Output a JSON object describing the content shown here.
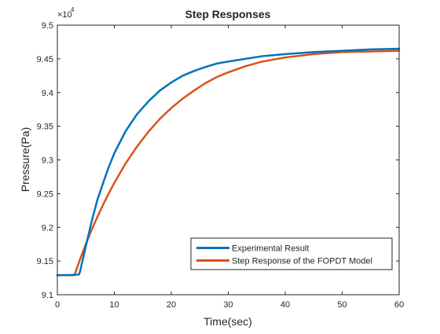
{
  "chart_data": {
    "type": "line",
    "title": "Step Responses",
    "xlabel": "Time(sec)",
    "ylabel": "Pressure(Pa)",
    "y_exponent_label": "×10",
    "y_exponent_power": "4",
    "xlim": [
      0,
      60
    ],
    "ylim": [
      9.1,
      9.5
    ],
    "x_ticks": [
      0,
      10,
      20,
      30,
      40,
      50,
      60
    ],
    "x_tick_labels": [
      "0",
      "10",
      "20",
      "30",
      "40",
      "50",
      "60"
    ],
    "y_ticks": [
      9.1,
      9.15,
      9.2,
      9.25,
      9.3,
      9.35,
      9.4,
      9.45,
      9.5
    ],
    "y_tick_labels": [
      "9.1",
      "9.15",
      "9.2",
      "9.25",
      "9.3",
      "9.35",
      "9.4",
      "9.45",
      "9.5"
    ],
    "grid": false,
    "legend_position": "bottom-right",
    "series": [
      {
        "name": "Experimental Result",
        "color": "#0072BD",
        "x": [
          0,
          2,
          3.8,
          4.0,
          5,
          6,
          7,
          8,
          9,
          10,
          12,
          14,
          16,
          18,
          20,
          22,
          24,
          26,
          28,
          30,
          33,
          36,
          40,
          45,
          50,
          55,
          60
        ],
        "y": [
          9.129,
          9.129,
          9.13,
          9.135,
          9.172,
          9.208,
          9.24,
          9.265,
          9.289,
          9.31,
          9.343,
          9.368,
          9.387,
          9.403,
          9.415,
          9.425,
          9.432,
          9.438,
          9.443,
          9.446,
          9.45,
          9.454,
          9.457,
          9.46,
          9.462,
          9.464,
          9.465
        ]
      },
      {
        "name": "Step Response of the FOPDT Model",
        "color": "#D95319",
        "x": [
          0,
          2,
          3.0,
          4,
          5,
          6,
          7,
          8,
          9,
          10,
          12,
          14,
          16,
          18,
          20,
          22,
          24,
          26,
          28,
          30,
          33,
          36,
          40,
          45,
          50,
          55,
          60
        ],
        "y": [
          9.129,
          9.129,
          9.129,
          9.153,
          9.175,
          9.196,
          9.215,
          9.233,
          9.25,
          9.266,
          9.295,
          9.32,
          9.342,
          9.361,
          9.377,
          9.391,
          9.403,
          9.414,
          9.423,
          9.43,
          9.439,
          9.446,
          9.452,
          9.457,
          9.46,
          9.461,
          9.462
        ]
      }
    ]
  }
}
